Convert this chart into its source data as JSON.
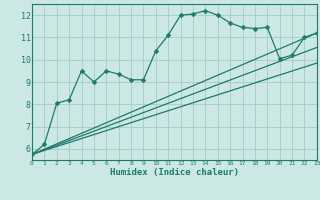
{
  "xlabel": "Humidex (Indice chaleur)",
  "xlim": [
    0,
    23
  ],
  "ylim": [
    5.5,
    12.5
  ],
  "yticks": [
    6,
    7,
    8,
    9,
    10,
    11,
    12
  ],
  "xticks": [
    0,
    1,
    2,
    3,
    4,
    5,
    6,
    7,
    8,
    9,
    10,
    11,
    12,
    13,
    14,
    15,
    16,
    17,
    18,
    19,
    20,
    21,
    22,
    23
  ],
  "bg_color": "#cce8e4",
  "line_color": "#1e7a6e",
  "grid_color": "#aad0cc",
  "main_series": {
    "x": [
      0,
      1,
      2,
      3,
      4,
      5,
      6,
      7,
      8,
      9,
      10,
      11,
      12,
      13,
      14,
      15,
      16,
      17,
      18,
      19,
      20,
      21,
      22,
      23
    ],
    "y": [
      5.75,
      6.2,
      8.05,
      8.2,
      9.5,
      9.0,
      9.5,
      9.35,
      9.1,
      9.1,
      10.4,
      11.1,
      12.0,
      12.05,
      12.2,
      12.0,
      11.65,
      11.45,
      11.4,
      11.45,
      10.05,
      10.2,
      11.0,
      11.2
    ]
  },
  "trend_lines": [
    {
      "x": [
        0,
        23
      ],
      "y": [
        5.75,
        11.2
      ]
    },
    {
      "x": [
        0,
        23
      ],
      "y": [
        5.75,
        10.55
      ]
    },
    {
      "x": [
        0,
        23
      ],
      "y": [
        5.75,
        9.85
      ]
    }
  ],
  "marker_size": 2.5,
  "line_width": 0.9
}
